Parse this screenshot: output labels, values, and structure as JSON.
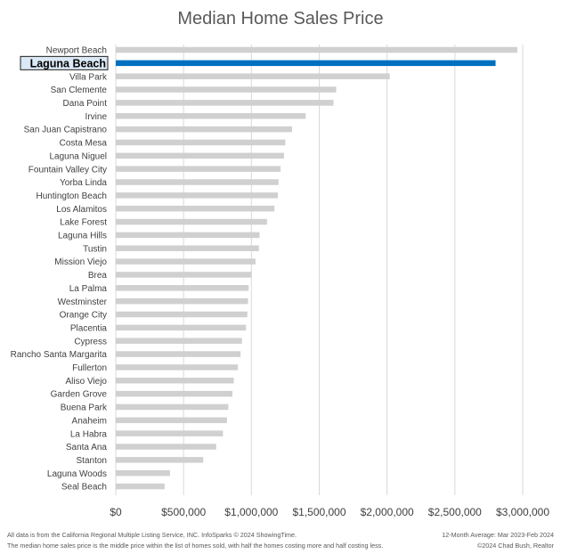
{
  "chart_data": {
    "type": "bar",
    "orientation": "horizontal",
    "title": "Median Home Sales Price",
    "highlighted_category": "Laguna Beach",
    "categories": [
      "Newport Beach",
      "Laguna Beach",
      "Villa Park",
      "San Clemente",
      "Dana Point",
      "Irvine",
      "San Juan Capistrano",
      "Costa Mesa",
      "Laguna Niguel",
      "Fountain Valley City",
      "Yorba Linda",
      "Huntington Beach",
      "Los Alamitos",
      "Lake Forest",
      "Laguna Hills",
      "Tustin",
      "Mission Viejo",
      "Brea",
      "La Palma",
      "Westminster",
      "Orange City",
      "Placentia",
      "Cypress",
      "Rancho Santa Margarita",
      "Fullerton",
      "Aliso Viejo",
      "Garden Grove",
      "Buena Park",
      "Anaheim",
      "La Habra",
      "Santa Ana",
      "Stanton",
      "Laguna Woods",
      "Seal Beach"
    ],
    "values": [
      2960000,
      2800000,
      2020000,
      1625000,
      1605000,
      1400000,
      1300000,
      1250000,
      1240000,
      1215000,
      1200000,
      1195000,
      1170000,
      1115000,
      1060000,
      1055000,
      1030000,
      1000000,
      980000,
      975000,
      970000,
      960000,
      930000,
      920000,
      900000,
      870000,
      860000,
      830000,
      820000,
      790000,
      740000,
      645000,
      400000,
      360000
    ],
    "xlim": [
      0,
      3000000
    ],
    "xticks": [
      0,
      500000,
      1000000,
      1500000,
      2000000,
      2500000,
      3000000
    ],
    "xtick_labels": [
      "$0",
      "$500,000",
      "$1,000,000",
      "$1,500,000",
      "$2,000,000",
      "$2,500,000",
      "$3,000,000"
    ],
    "grid": "vertical",
    "legend": "none",
    "colors": {
      "bar": "#d0d0d0",
      "highlight": "#0070c0",
      "grid": "#d9d9d9",
      "highlight_label_bg": "#dbe8f5"
    }
  },
  "footer": {
    "source_note": "All data is from the California Regional Multiple Listing Service, INC. InfoSparks © 2024 ShowingTime.",
    "definition_note": "The median home sales price is the middle price within the list of homes sold, with half the homes costing more and half costing less.",
    "period": "12-Month Average: Mar 2023-Feb 2024",
    "copyright": "©2024 Chad Bush, Realtor"
  }
}
